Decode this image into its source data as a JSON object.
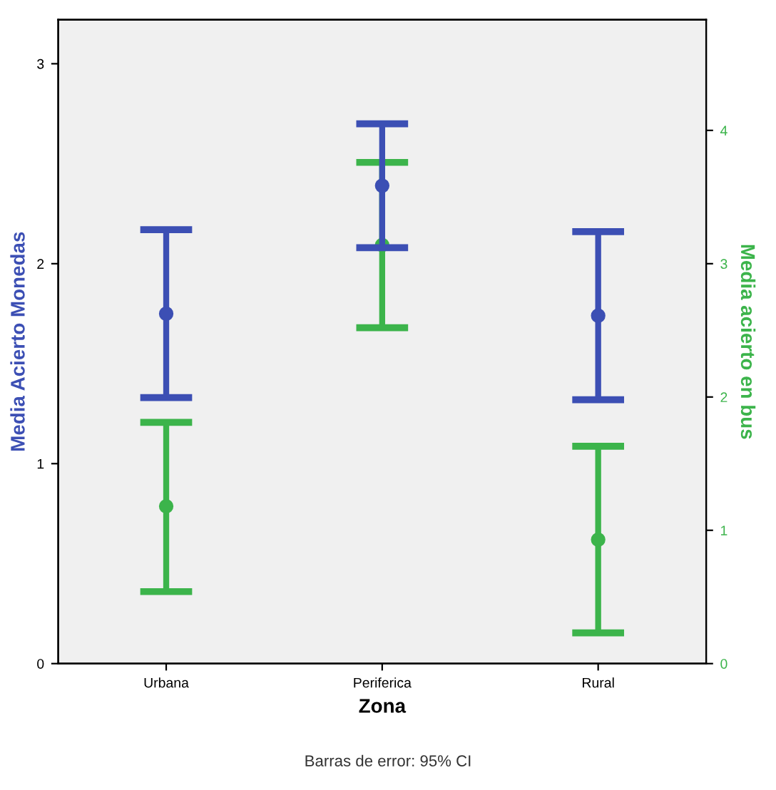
{
  "chart_data": {
    "type": "scatter",
    "xlabel": "Zona",
    "ylabel": "Media Acierto Monedas",
    "y2label": "Media acierto en bus",
    "categories": [
      "Urbana",
      "Periferica",
      "Rural"
    ],
    "series": [
      {
        "color": "#3c4fb4",
        "values": [
          1.75,
          2.39,
          1.74
        ],
        "errors": [
          [
            1.33,
            2.17
          ],
          [
            2.08,
            2.7
          ],
          [
            1.32,
            2.16
          ]
        ]
      },
      {
        "color": "#3cb44b",
        "axis": "y2",
        "values": [
          1.18,
          3.14,
          0.93
        ],
        "errors": [
          [
            0.54,
            1.81
          ],
          [
            2.52,
            3.76
          ],
          [
            0.23,
            1.63
          ]
        ]
      }
    ],
    "ylim": [
      0,
      3.22
    ],
    "yticks": [
      0,
      1,
      2,
      3
    ],
    "y2lim": [
      0,
      4.83
    ],
    "y2ticks": [
      0,
      1,
      2,
      3,
      4
    ],
    "marker": "circle",
    "grid": false,
    "legend": false,
    "annotations": [
      "Barras de error: 95% CI"
    ]
  }
}
